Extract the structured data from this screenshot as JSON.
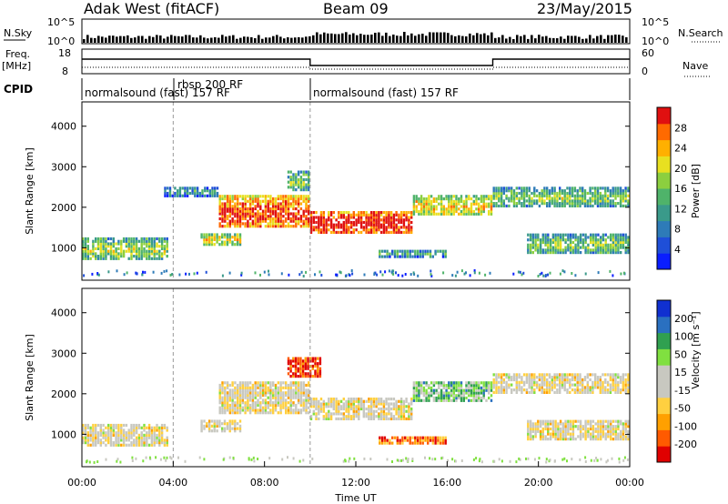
{
  "header": {
    "station": "Adak West (fitACF)",
    "beam": "Beam 09",
    "date": "23/May/2015"
  },
  "top_panels": {
    "nsky_label": "N.Sky",
    "nsearch_label": "N.Search",
    "nsky_ticks": [
      "10^5",
      "10^0"
    ],
    "nsearch_ticks": [
      "10^5",
      "10^0"
    ],
    "freq_label": "Freq.",
    "freq_unit": "[MHz]",
    "freq_ticks": [
      "18",
      "8"
    ],
    "nave_label": "Nave",
    "nave_ticks": [
      "60",
      "0"
    ],
    "cpid_label": "CPID",
    "cpid_segments": [
      {
        "label": "normalsound (fast) 157 RF",
        "start_h": 0,
        "end_h": 4
      },
      {
        "label": "rbsp 200 RF",
        "start_h": 4,
        "end_h": 10
      },
      {
        "label": "normalsound (fast) 157 RF",
        "start_h": 10,
        "end_h": 24
      }
    ]
  },
  "colors": {
    "power_scale": [
      "#0a1eff",
      "#1f4fd8",
      "#2e7bb8",
      "#3a9a8a",
      "#4fb36a",
      "#8ccf3f",
      "#e8e020",
      "#ffb000",
      "#ff6a00",
      "#e01010"
    ],
    "velocity_scale": [
      "#e00000",
      "#ff5a00",
      "#ffa000",
      "#ffd040",
      "#c8c8c0",
      "#c8c8c0",
      "#80e040",
      "#30a050",
      "#2a70c0",
      "#1030d0"
    ]
  },
  "chart_data": [
    {
      "type": "heatmap",
      "name": "power",
      "xlabel": "",
      "ylabel": "Slant Range [km]",
      "xlim": [
        0,
        24
      ],
      "ylim": [
        200,
        4600
      ],
      "yticks": [
        "1000",
        "2000",
        "3000",
        "4000"
      ],
      "colorbar_label": "Power [dB]",
      "colorbar_ticks": [
        "28",
        "24",
        "20",
        "16",
        "12",
        "8",
        "4"
      ],
      "bands": [
        {
          "t0": 0.0,
          "t1": 3.8,
          "r0": 700,
          "r1": 1250,
          "level": 0.35
        },
        {
          "t0": 5.2,
          "t1": 7.0,
          "r0": 1050,
          "r1": 1350,
          "level": 0.45
        },
        {
          "t0": 3.6,
          "t1": 6.0,
          "r0": 2250,
          "r1": 2500,
          "level": 0.15
        },
        {
          "t0": 6.0,
          "t1": 10.0,
          "r0": 1500,
          "r1": 2300,
          "level": 0.7
        },
        {
          "t0": 10.0,
          "t1": 14.5,
          "r0": 1350,
          "r1": 1900,
          "level": 0.8
        },
        {
          "t0": 14.5,
          "t1": 18.0,
          "r0": 1800,
          "r1": 2300,
          "level": 0.5
        },
        {
          "t0": 18.0,
          "t1": 24.0,
          "r0": 2000,
          "r1": 2500,
          "level": 0.3
        },
        {
          "t0": 19.5,
          "t1": 24.0,
          "r0": 850,
          "r1": 1350,
          "level": 0.3
        },
        {
          "t0": 13.0,
          "t1": 16.0,
          "r0": 750,
          "r1": 950,
          "level": 0.2
        },
        {
          "t0": 9.0,
          "t1": 10.0,
          "r0": 2400,
          "r1": 2900,
          "level": 0.3
        }
      ]
    },
    {
      "type": "heatmap",
      "name": "velocity",
      "xlabel": "Time UT",
      "ylabel": "Slant Range [km]",
      "xlim": [
        0,
        24
      ],
      "ylim": [
        200,
        4600
      ],
      "xticks": [
        "00:00",
        "04:00",
        "08:00",
        "12:00",
        "16:00",
        "20:00",
        "00:00"
      ],
      "yticks": [
        "1000",
        "2000",
        "3000",
        "4000"
      ],
      "colorbar_label": "Velocity [m s⁻¹]",
      "colorbar_ticks": [
        "200",
        "100",
        "50",
        "15",
        "-15",
        "-50",
        "-100",
        "-200"
      ],
      "bands": [
        {
          "t0": 0.0,
          "t1": 3.8,
          "r0": 700,
          "r1": 1250,
          "level": 0.45
        },
        {
          "t0": 5.2,
          "t1": 7.0,
          "r0": 1050,
          "r1": 1350,
          "level": 0.45
        },
        {
          "t0": 6.0,
          "t1": 10.0,
          "r0": 1500,
          "r1": 2300,
          "level": 0.45
        },
        {
          "t0": 10.0,
          "t1": 14.5,
          "r0": 1350,
          "r1": 1900,
          "level": 0.45
        },
        {
          "t0": 14.5,
          "t1": 18.0,
          "r0": 1800,
          "r1": 2300,
          "level": 0.65
        },
        {
          "t0": 18.0,
          "t1": 24.0,
          "r0": 2000,
          "r1": 2500,
          "level": 0.45
        },
        {
          "t0": 19.5,
          "t1": 24.0,
          "r0": 850,
          "r1": 1350,
          "level": 0.45
        },
        {
          "t0": 13.0,
          "t1": 16.0,
          "r0": 750,
          "r1": 950,
          "level": 0.2
        },
        {
          "t0": 9.0,
          "t1": 10.5,
          "r0": 2400,
          "r1": 2900,
          "level": 0.1
        }
      ]
    }
  ]
}
